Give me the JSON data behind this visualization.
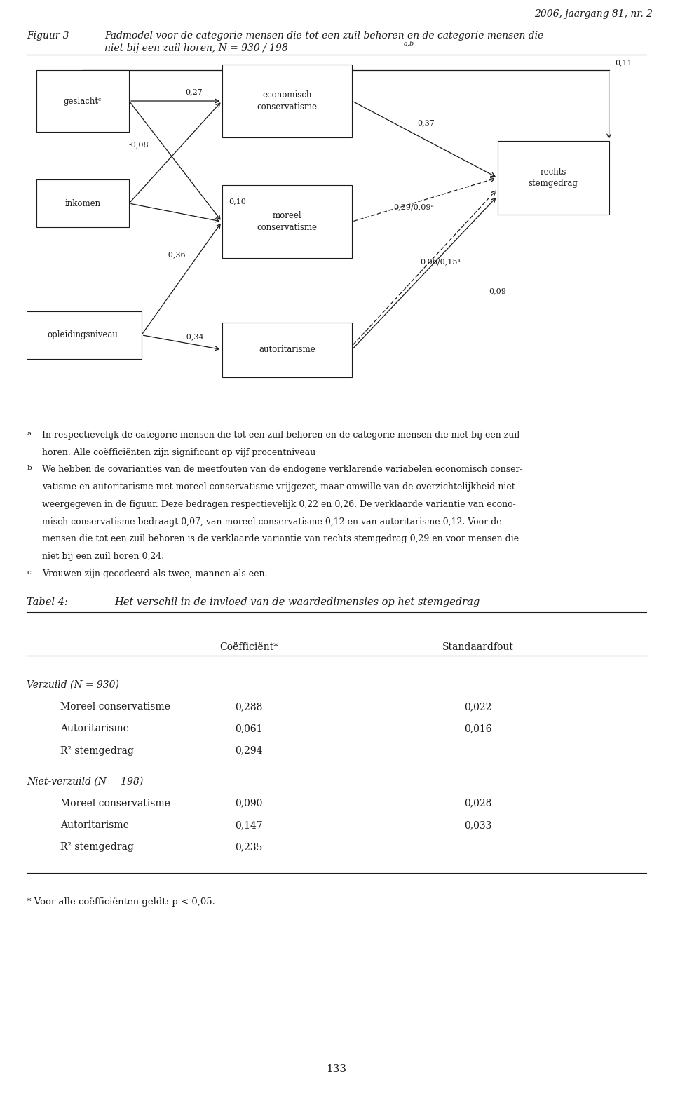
{
  "page_header": "2006, jaargang 81, nr. 2",
  "figure_label": "Figuur 3",
  "figure_title_line1": "Padmodel voor de categorie mensen die tot een zuil behoren en de categorie mensen die",
  "figure_title_line2": "niet bij een zuil horen, N = 930 / 198",
  "figure_title_superscript": "a,b",
  "notes": [
    {
      "superscript": "a",
      "text": "In respectievelijk de categorie mensen die tot een zuil behoren en de categorie mensen die niet bij een zuil horen. Alle coëfficiënten zijn significant op vijf procentniveau"
    },
    {
      "superscript": "b",
      "text": "We hebben de covarianties van de meetfouten van de endogene verklarende variabelen economisch conser-vatisme en autoritarisme met moreel conservatisme vrijgezet, maar omwille van de overzichtelijkheid niet weergegeven in de figuur. Deze bedragen respectievelijk 0,22 en 0,26. De verklaarde variantie van econo-misch conservatisme bedraagt 0,07, van moreel conservatisme 0,12 en van autoritarisme 0,12. Voor de mensen die tot een zuil behoren is de verklaarde variantie van rechts stemgedrag 0,29 en voor mensen die niet bij een zuil horen 0,24."
    },
    {
      "superscript": "c",
      "text": "Vrouwen zijn gecodeerd als twee, mannen als een."
    }
  ],
  "note_lines": [
    [
      "a",
      "In respectievelijk de categorie mensen die tot een zuil behoren en de categorie mensen die niet bij een zuil"
    ],
    [
      "",
      "horen. Alle coëfficiënten zijn significant op vijf procentniveau"
    ],
    [
      "b",
      "We hebben de covarianties van de meetfouten van de endogene verklarende variabelen economisch conser-"
    ],
    [
      "",
      "vatisme en autoritarisme met moreel conservatisme vrijgezet, maar omwille van de overzichtelijkheid niet"
    ],
    [
      "",
      "weergegeven in de figuur. Deze bedragen respectievelijk 0,22 en 0,26. De verklaarde variantie van econo-"
    ],
    [
      "",
      "misch conservatisme bedraagt 0,07, van moreel conservatisme 0,12 en van autoritarisme 0,12. Voor de"
    ],
    [
      "",
      "mensen die tot een zuil behoren is de verklaarde variantie van rechts stemgedrag 0,29 en voor mensen die"
    ],
    [
      "",
      "niet bij een zuil horen 0,24."
    ],
    [
      "c",
      "Vrouwen zijn gecodeerd als twee, mannen als een."
    ]
  ],
  "table_title_label": "Tabel 4:",
  "table_title": "Het verschil in de invloed van de waardedimensies op het stemgedrag",
  "table_col1": "Coëfficiënt*",
  "table_col2": "Standaardfout",
  "table_data": [
    {
      "section": "Verzuild (N = 930)",
      "italic": true,
      "rows": [
        {
          "label": "Moreel conservatisme",
          "coef": "0,288",
          "se": "0,022"
        },
        {
          "label": "Autoritarisme",
          "coef": "0,061",
          "se": "0,016"
        },
        {
          "label": "R² stemgedrag",
          "coef": "0,294",
          "se": ""
        }
      ]
    },
    {
      "section": "Niet-verzuild (N = 198)",
      "italic": true,
      "rows": [
        {
          "label": "Moreel conservatisme",
          "coef": "0,090",
          "se": "0,028"
        },
        {
          "label": "Autoritarisme",
          "coef": "0,147",
          "se": "0,033"
        },
        {
          "label": "R² stemgedrag",
          "coef": "0,235",
          "se": ""
        }
      ]
    }
  ],
  "table_footnote": "* Voor alle coëfficiënten geldt: p < 0,05.",
  "page_number": "133",
  "bg_color": "#ffffff",
  "text_color": "#1a1a1a",
  "box_color": "#1a1a1a"
}
